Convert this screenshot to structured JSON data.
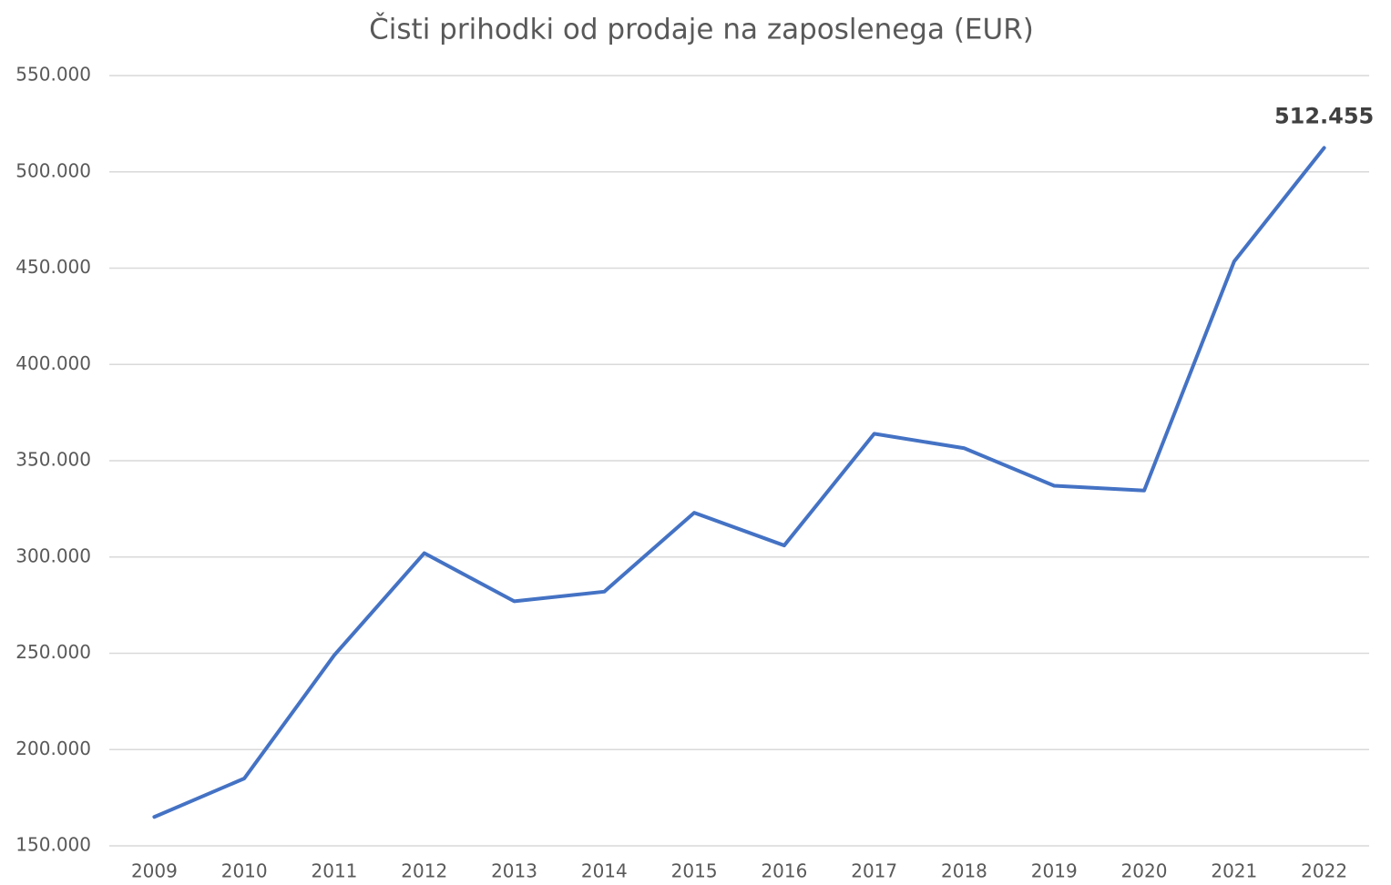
{
  "chart_data": {
    "type": "line",
    "title": "Čisti prihodki od prodaje na zaposlenega (EUR)",
    "categories": [
      "2009",
      "2010",
      "2011",
      "2012",
      "2013",
      "2014",
      "2015",
      "2016",
      "2017",
      "2018",
      "2019",
      "2020",
      "2021",
      "2022"
    ],
    "series": [
      {
        "name": "Čisti prihodki od prodaje na zaposlenega",
        "color": "#4472c4",
        "values": [
          165000,
          185000,
          249000,
          302000,
          277000,
          282000,
          323000,
          306000,
          364000,
          356500,
          337000,
          334500,
          453500,
          512455
        ],
        "value_labels": [
          null,
          null,
          null,
          null,
          null,
          null,
          null,
          null,
          null,
          null,
          null,
          null,
          null,
          "512.455"
        ]
      }
    ],
    "ylim": [
      150000,
      550000
    ],
    "yticks": [
      {
        "value": 150000,
        "label": "150.000"
      },
      {
        "value": 200000,
        "label": "200.000"
      },
      {
        "value": 250000,
        "label": "250.000"
      },
      {
        "value": 300000,
        "label": "300.000"
      },
      {
        "value": 350000,
        "label": "350.000"
      },
      {
        "value": 400000,
        "label": "400.000"
      },
      {
        "value": 450000,
        "label": "450.000"
      },
      {
        "value": 500000,
        "label": "500.000"
      },
      {
        "value": 550000,
        "label": "550.000"
      }
    ],
    "grid": true
  }
}
